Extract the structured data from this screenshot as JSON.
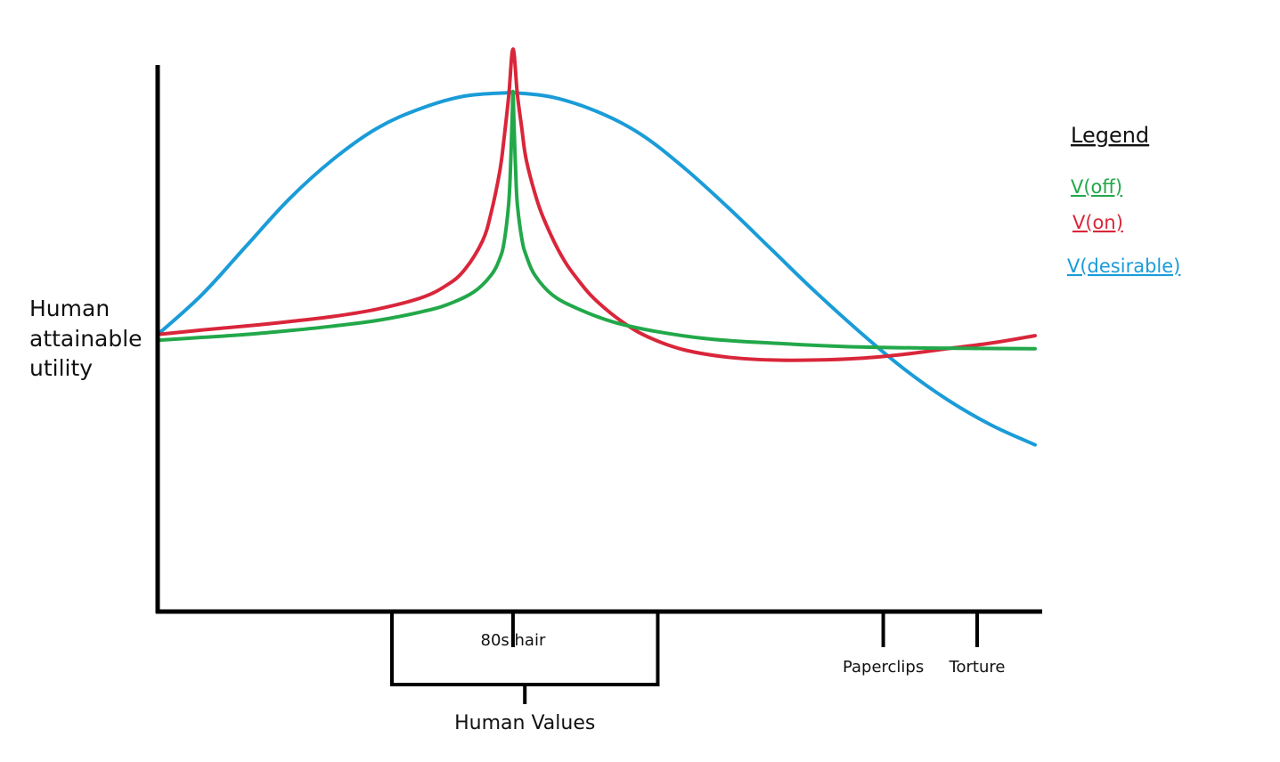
{
  "chart_data": {
    "type": "line",
    "title": "",
    "xlabel": "",
    "ylabel": "Human attainable utility",
    "ylabel_lines": [
      "Human",
      "attainable",
      "utility"
    ],
    "xlim": [
      0,
      10
    ],
    "ylim": [
      0,
      10
    ],
    "grid": false,
    "x_ticks": [
      {
        "label": "80s hair",
        "x": 4.05
      },
      {
        "label": "Paperclips",
        "x": 8.27
      },
      {
        "label": "Torture",
        "x": 9.34
      }
    ],
    "x_bracket": {
      "label": "Human Values",
      "from": 2.67,
      "to": 5.7
    },
    "legend": {
      "title": "Legend",
      "position": "top-right",
      "items": [
        "V(off)",
        "V(on)",
        "V(desirable)"
      ]
    },
    "series": [
      {
        "name": "V(off)",
        "color": "#22a84a",
        "x": [
          0,
          0.5,
          1.0,
          1.5,
          2.0,
          2.5,
          3.0,
          3.3,
          3.6,
          3.8,
          3.9,
          3.95,
          4.0,
          4.02,
          4.04,
          4.05,
          4.06,
          4.08,
          4.1,
          4.15,
          4.2,
          4.3,
          4.5,
          4.8,
          5.2,
          5.7,
          6.3,
          7.0,
          8.0,
          9.0,
          10.0
        ],
        "y": [
          4.8,
          4.85,
          4.9,
          4.97,
          5.05,
          5.15,
          5.3,
          5.43,
          5.65,
          5.95,
          6.25,
          6.55,
          7.2,
          7.8,
          8.7,
          9.2,
          8.7,
          7.8,
          7.2,
          6.6,
          6.3,
          5.95,
          5.6,
          5.35,
          5.12,
          4.95,
          4.82,
          4.75,
          4.68,
          4.66,
          4.65
        ]
      },
      {
        "name": "V(on)",
        "color": "#d9263a",
        "x": [
          0,
          0.5,
          1.0,
          1.5,
          2.0,
          2.5,
          3.0,
          3.3,
          3.5,
          3.7,
          3.8,
          3.9,
          3.95,
          4.0,
          4.05,
          4.1,
          4.15,
          4.2,
          4.3,
          4.4,
          4.6,
          4.8,
          5.0,
          5.3,
          5.6,
          6.0,
          6.5,
          7.0,
          7.5,
          8.0,
          8.5,
          9.0,
          9.5,
          10.0
        ],
        "y": [
          4.9,
          4.98,
          5.05,
          5.13,
          5.22,
          5.35,
          5.55,
          5.78,
          6.05,
          6.55,
          7.05,
          7.8,
          8.4,
          9.1,
          9.95,
          9.15,
          8.55,
          8.0,
          7.4,
          6.95,
          6.3,
          5.85,
          5.5,
          5.12,
          4.85,
          4.63,
          4.5,
          4.45,
          4.45,
          4.48,
          4.55,
          4.65,
          4.75,
          4.88
        ]
      },
      {
        "name": "V(desirable)",
        "color": "#1a9cd8",
        "x": [
          0,
          0.5,
          1.0,
          1.5,
          2.0,
          2.5,
          3.0,
          3.5,
          4.0,
          4.05,
          4.5,
          5.0,
          5.5,
          6.0,
          6.5,
          7.0,
          7.5,
          8.0,
          8.5,
          9.0,
          9.5,
          10.0
        ],
        "y": [
          4.9,
          5.6,
          6.45,
          7.3,
          8.0,
          8.55,
          8.9,
          9.12,
          9.18,
          9.18,
          9.1,
          8.85,
          8.45,
          7.85,
          7.15,
          6.4,
          5.65,
          4.95,
          4.3,
          3.75,
          3.3,
          2.95
        ]
      }
    ]
  }
}
